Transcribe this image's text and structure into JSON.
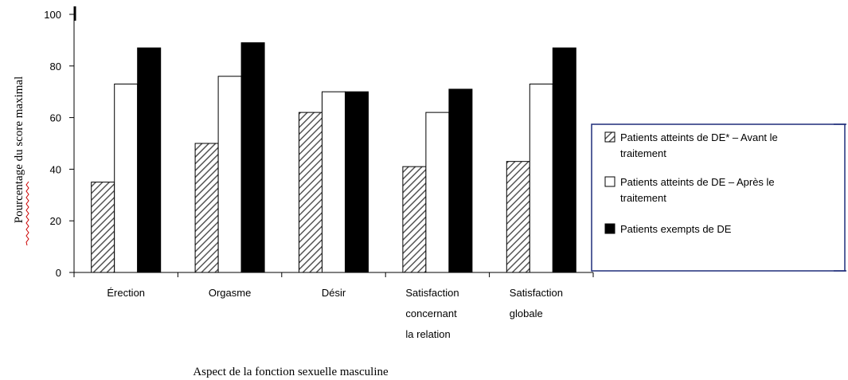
{
  "chart_data": {
    "type": "bar",
    "categories": [
      [
        "Érection"
      ],
      [
        "Orgasme"
      ],
      [
        "Désir"
      ],
      [
        "Satisfaction",
        "concernant",
        "la relation"
      ],
      [
        "Satisfaction",
        "globale"
      ]
    ],
    "series": [
      {
        "name": [
          "Patients atteints de DE* – Avant le",
          "traitement"
        ],
        "values": [
          35,
          50,
          62,
          41,
          43
        ],
        "pattern": "hatch"
      },
      {
        "name": [
          "Patients atteints de DE – Après le",
          "traitement"
        ],
        "values": [
          73,
          76,
          70,
          62,
          73
        ],
        "pattern": "white"
      },
      {
        "name": [
          "Patients exempts de DE"
        ],
        "values": [
          87,
          89,
          70,
          71,
          87
        ],
        "pattern": "black"
      }
    ],
    "xlabel": "Aspect de la fonction sexuelle masculine",
    "ylabel": "Pourcentage du score maximal",
    "ylim": [
      0,
      100
    ],
    "yticks": [
      0,
      20,
      40,
      60,
      80,
      100
    ],
    "legend_position": "right",
    "colors": {
      "hatch": "#555555",
      "white": "#ffffff",
      "black": "#000000",
      "legend_border": "#1f2d7a",
      "underline": "#cc0000"
    }
  }
}
